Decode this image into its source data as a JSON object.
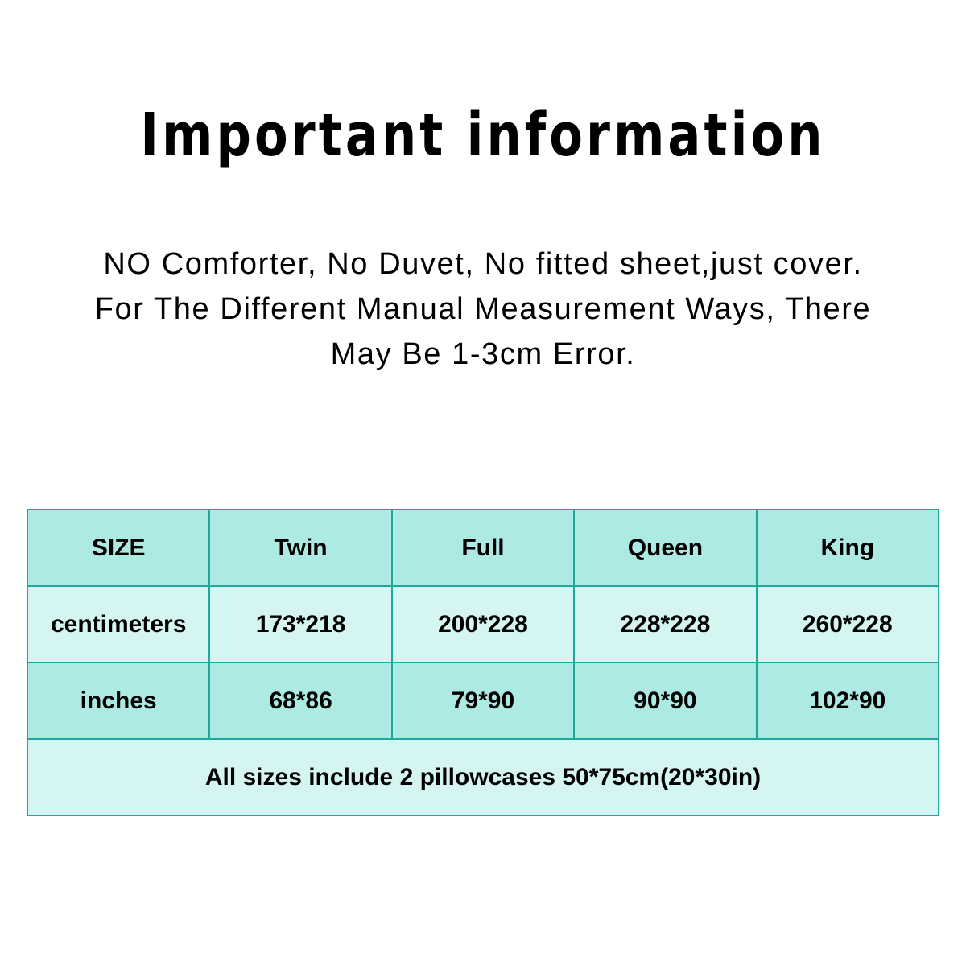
{
  "title": "Important information",
  "notes": [
    "NO Comforter, No Duvet, No fitted sheet,just cover.",
    "For The Different Manual Measurement Ways, There",
    "May Be 1-3cm Error."
  ],
  "table": {
    "header": [
      "SIZE",
      "Twin",
      "Full",
      "Queen",
      "King"
    ],
    "rows": [
      [
        "centimeters",
        "173*218",
        "200*228",
        "228*228",
        "260*228"
      ],
      [
        "inches",
        "68*86",
        "79*90",
        "90*90",
        "102*90"
      ]
    ],
    "footer": "All sizes include 2 pillowcases 50*75cm(20*30in)"
  },
  "colors": {
    "border": "#1fa89a",
    "header_bg": "#aeeae4",
    "light_bg": "#d4f5f1"
  }
}
